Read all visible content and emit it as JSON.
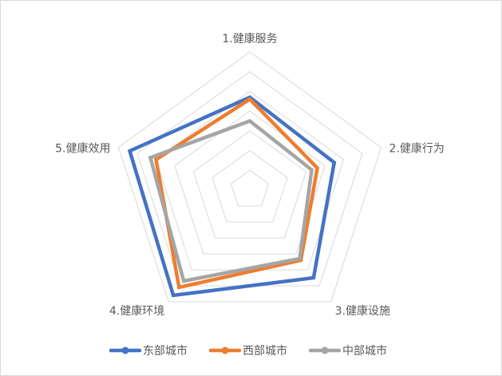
{
  "chart_data": {
    "type": "radar",
    "categories": [
      "1.健康服务",
      "2.健康行为",
      "3.健康设施",
      "4.健康环境",
      "5.健康效用"
    ],
    "rmax": 7,
    "rings": 7,
    "grid": true,
    "legend_position": "bottom",
    "series": [
      {
        "name": "东部城市",
        "color": "#4472c4",
        "values": [
          4.7,
          4.5,
          5.5,
          6.6,
          6.4
        ]
      },
      {
        "name": "西部城市",
        "color": "#ed7d31",
        "values": [
          4.6,
          3.6,
          4.4,
          6.1,
          5.0
        ]
      },
      {
        "name": "中部城市",
        "color": "#a5a5a5",
        "values": [
          3.5,
          3.3,
          4.3,
          5.7,
          5.3
        ]
      }
    ]
  }
}
